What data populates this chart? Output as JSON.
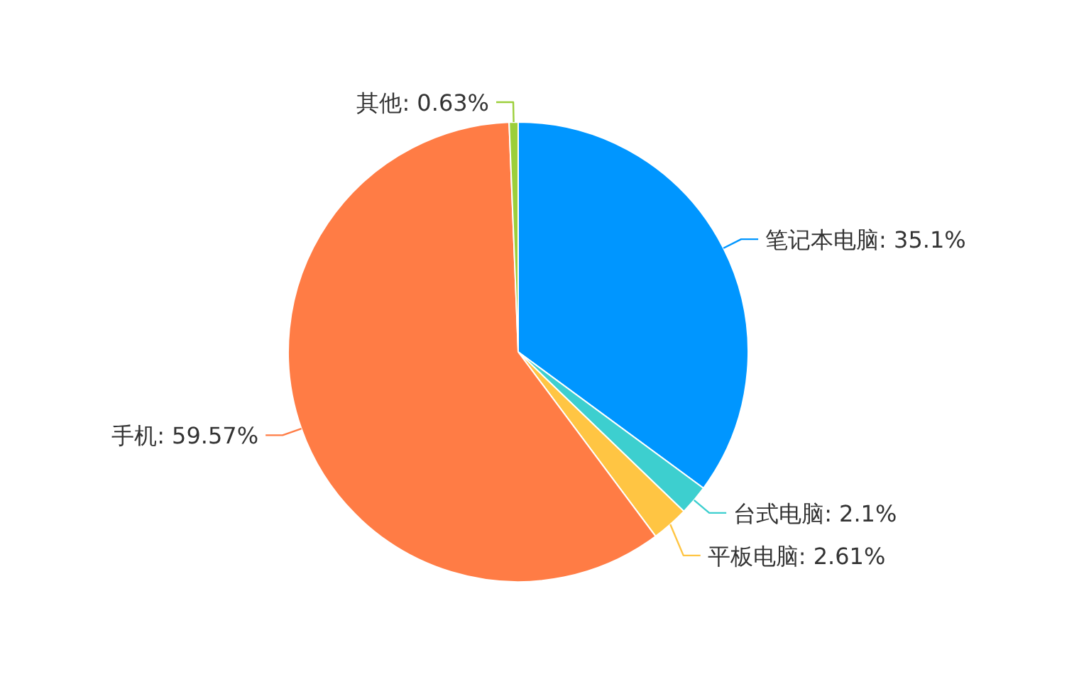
{
  "chart_data": {
    "type": "pie",
    "categories": [
      "笔记本电脑",
      "台式电脑",
      "平板电脑",
      "手机",
      "其他"
    ],
    "values": [
      35.1,
      2.1,
      2.61,
      59.57,
      0.63
    ],
    "colors": [
      "#0096ff",
      "#3dcfcf",
      "#ffc543",
      "#ff7c45",
      "#9ccf3a"
    ],
    "value_labels": [
      ": 35.1%",
      ": 2.1%",
      ": 2.61%",
      ": 59.57%",
      ": 0.63%"
    ]
  }
}
